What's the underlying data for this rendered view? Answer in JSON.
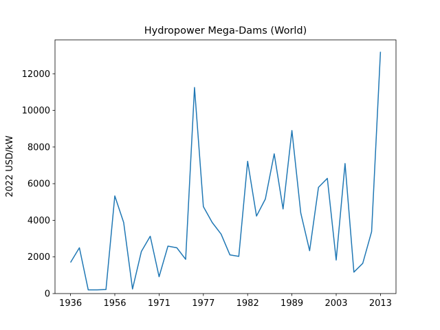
{
  "chart_data": {
    "type": "line",
    "title": "Hydropower Mega-Dams (World)",
    "xlabel": "",
    "ylabel": "2022 USD/kW",
    "x_tick_labels": [
      "1936",
      "1956",
      "1971",
      "1977",
      "1982",
      "1989",
      "2003",
      "2013"
    ],
    "y_ticks": [
      0,
      2000,
      4000,
      6000,
      8000,
      10000,
      12000
    ],
    "y_tick_labels": [
      "0",
      "2000",
      "4000",
      "6000",
      "8000",
      "10000",
      "12000"
    ],
    "series": [
      {
        "color": "#1f77b4",
        "values": [
          1700,
          2500,
          200,
          200,
          220,
          5330,
          3880,
          250,
          2300,
          3130,
          920,
          2590,
          2500,
          1870,
          11250,
          4750,
          3880,
          3250,
          2110,
          2030,
          7220,
          4230,
          5160,
          7630,
          4620,
          8900,
          4400,
          2340,
          5800,
          6290,
          1830,
          7100,
          1170,
          1650,
          3380,
          13200
        ]
      }
    ],
    "x_tick_positions": [
      0,
      5,
      10,
      15,
      20,
      25,
      30,
      35
    ],
    "ylim": [
      0,
      13850
    ],
    "grid": false,
    "legend": "none"
  }
}
